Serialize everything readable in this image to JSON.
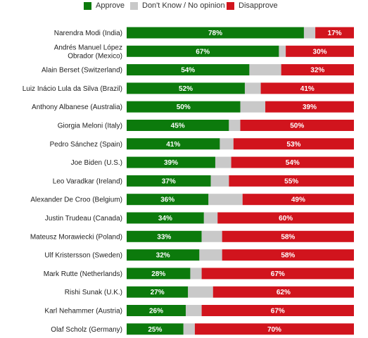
{
  "colors": {
    "approve": "#0c7a0c",
    "dont_know": "#c9c9c9",
    "disapprove": "#d1141d"
  },
  "legend": {
    "approve": "Approve",
    "dont_know": "Don't Know / No opinion",
    "disapprove": "Disapprove"
  },
  "chart_data": {
    "type": "bar",
    "orientation": "horizontal",
    "stacked": true,
    "title": "",
    "xlabel": "",
    "ylabel": "",
    "xlim": [
      0,
      100
    ],
    "grid": false,
    "legend_position": "top",
    "categories": [
      [
        "Narendra Modi (India)"
      ],
      [
        "Andrés Manuel López",
        "Obrador (Mexico)"
      ],
      [
        "Alain Berset (Switzerland)"
      ],
      [
        "Luiz Inácio Lula da Silva (Brazil)"
      ],
      [
        "Anthony Albanese (Australia)"
      ],
      [
        "Giorgia Meloni (Italy)"
      ],
      [
        "Pedro Sánchez (Spain)"
      ],
      [
        "Joe Biden (U.S.)"
      ],
      [
        "Leo Varadkar (Ireland)"
      ],
      [
        "Alexander De Croo (Belgium)"
      ],
      [
        "Justin Trudeau (Canada)"
      ],
      [
        "Mateusz Morawiecki (Poland)"
      ],
      [
        "Ulf Kristersson (Sweden)"
      ],
      [
        "Mark Rutte (Netherlands)"
      ],
      [
        "Rishi Sunak (U.K.)"
      ],
      [
        "Karl Nehammer (Austria)"
      ],
      [
        "Olaf Scholz (Germany)"
      ]
    ],
    "series": [
      {
        "name": "Approve",
        "key": "approve",
        "values": [
          78,
          67,
          54,
          52,
          50,
          45,
          41,
          39,
          37,
          36,
          34,
          33,
          32,
          28,
          27,
          26,
          25
        ]
      },
      {
        "name": "Don't Know / No opinion",
        "key": "dont_know",
        "values": [
          5,
          3,
          14,
          7,
          11,
          5,
          6,
          7,
          8,
          15,
          6,
          9,
          10,
          5,
          11,
          7,
          5
        ]
      },
      {
        "name": "Disapprove",
        "key": "disapprove",
        "values": [
          17,
          30,
          32,
          41,
          39,
          50,
          53,
          54,
          55,
          49,
          60,
          58,
          58,
          67,
          62,
          67,
          70
        ]
      }
    ],
    "label_suffix": "%"
  }
}
